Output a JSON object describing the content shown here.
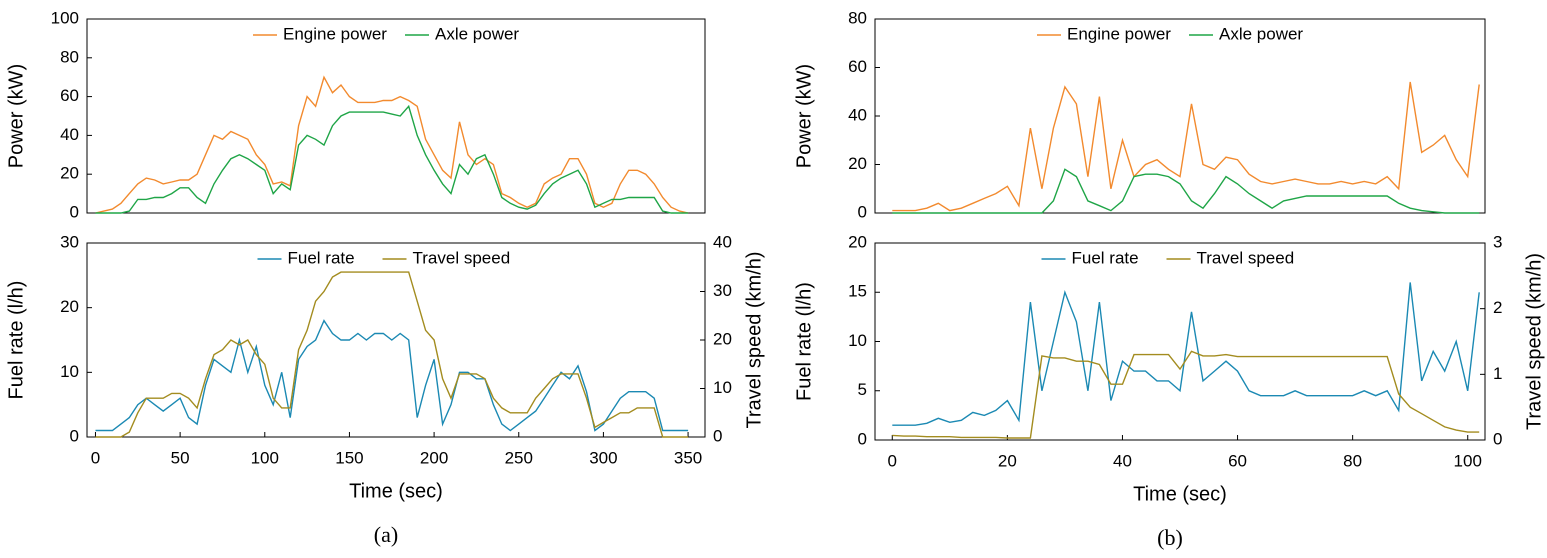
{
  "chart_data": [
    {
      "type": "line",
      "ylabel": "Power (kW)",
      "legend": "top-center",
      "x": [
        0,
        5,
        10,
        15,
        20,
        25,
        30,
        35,
        40,
        45,
        50,
        55,
        60,
        65,
        70,
        75,
        80,
        85,
        90,
        95,
        100,
        105,
        110,
        115,
        120,
        125,
        130,
        135,
        140,
        145,
        150,
        155,
        160,
        165,
        170,
        175,
        180,
        185,
        190,
        195,
        200,
        205,
        210,
        215,
        220,
        225,
        230,
        235,
        240,
        245,
        250,
        255,
        260,
        265,
        270,
        275,
        280,
        285,
        290,
        295,
        300,
        305,
        310,
        315,
        320,
        325,
        330,
        335,
        340,
        345,
        350
      ],
      "series": [
        {
          "name": "Engine power",
          "color": "#f28a2e",
          "values": [
            0,
            1,
            2,
            5,
            10,
            15,
            18,
            17,
            15,
            16,
            17,
            17,
            20,
            30,
            40,
            38,
            42,
            40,
            38,
            30,
            25,
            15,
            16,
            14,
            45,
            60,
            55,
            70,
            62,
            66,
            60,
            57,
            57,
            57,
            58,
            58,
            60,
            58,
            55,
            38,
            30,
            22,
            18,
            47,
            30,
            25,
            28,
            25,
            10,
            8,
            5,
            3,
            5,
            15,
            18,
            20,
            28,
            28,
            20,
            5,
            3,
            5,
            15,
            22,
            22,
            20,
            15,
            8,
            3,
            1,
            0
          ]
        },
        {
          "name": "Axle power",
          "color": "#1fa547",
          "values": [
            0,
            0,
            0,
            0,
            1,
            7,
            7,
            8,
            8,
            10,
            13,
            13,
            8,
            5,
            15,
            22,
            28,
            30,
            28,
            25,
            22,
            10,
            15,
            12,
            35,
            40,
            38,
            35,
            45,
            50,
            52,
            52,
            52,
            52,
            52,
            51,
            50,
            55,
            40,
            30,
            22,
            15,
            10,
            25,
            20,
            28,
            30,
            20,
            8,
            5,
            3,
            2,
            4,
            10,
            15,
            18,
            20,
            22,
            15,
            3,
            5,
            7,
            7,
            8,
            8,
            8,
            8,
            1,
            0,
            0,
            0
          ]
        }
      ],
      "xlim": [
        -5,
        360
      ],
      "ylim": [
        0,
        100
      ],
      "yticks": [
        0,
        20,
        40,
        60,
        80,
        100
      ]
    },
    {
      "type": "line",
      "ylabel": "Fuel rate (l/h)",
      "y2label": "Travel speed (km/h)",
      "xlabel": "Time (sec)",
      "caption": "(a)",
      "legend": "top-center",
      "x": [
        0,
        5,
        10,
        15,
        20,
        25,
        30,
        35,
        40,
        45,
        50,
        55,
        60,
        65,
        70,
        75,
        80,
        85,
        90,
        95,
        100,
        105,
        110,
        115,
        120,
        125,
        130,
        135,
        140,
        145,
        150,
        155,
        160,
        165,
        170,
        175,
        180,
        185,
        190,
        195,
        200,
        205,
        210,
        215,
        220,
        225,
        230,
        235,
        240,
        245,
        250,
        255,
        260,
        265,
        270,
        275,
        280,
        285,
        290,
        295,
        300,
        305,
        310,
        315,
        320,
        325,
        330,
        335,
        340,
        345,
        350
      ],
      "series": [
        {
          "name": "Fuel rate",
          "color": "#1b89b3",
          "values": [
            1,
            1,
            1,
            2,
            3,
            5,
            6,
            5,
            4,
            5,
            6,
            3,
            2,
            8,
            12,
            11,
            10,
            15,
            10,
            14,
            8,
            5,
            10,
            3,
            12,
            14,
            15,
            18,
            16,
            15,
            15,
            16,
            15,
            16,
            16,
            15,
            16,
            15,
            3,
            8,
            12,
            2,
            5,
            10,
            10,
            9,
            9,
            5,
            2,
            1,
            2,
            3,
            4,
            6,
            8,
            10,
            9,
            11,
            7,
            1,
            2,
            4,
            6,
            7,
            7,
            7,
            6,
            1,
            1,
            1,
            1
          ]
        },
        {
          "name": "Travel speed",
          "color": "#a38c1f",
          "axis": "y2",
          "values": [
            0,
            0,
            0,
            0,
            1,
            5,
            8,
            8,
            8,
            9,
            9,
            8,
            6,
            12,
            17,
            18,
            20,
            19,
            20,
            17,
            15,
            8,
            6,
            6,
            18,
            22,
            28,
            30,
            33,
            34,
            34,
            34,
            34,
            34,
            34,
            34,
            34,
            34,
            28,
            22,
            20,
            12,
            8,
            13,
            13,
            13,
            12,
            8,
            6,
            5,
            5,
            5,
            8,
            10,
            12,
            13,
            13,
            13,
            8,
            2,
            3,
            4,
            5,
            5,
            6,
            6,
            6,
            0,
            0,
            0,
            0
          ]
        }
      ],
      "xlim": [
        -5,
        360
      ],
      "xticks": [
        0,
        50,
        100,
        150,
        200,
        250,
        300,
        350
      ],
      "ylim": [
        0,
        30
      ],
      "yticks": [
        0,
        10,
        20,
        30
      ],
      "y2lim": [
        0,
        40
      ],
      "y2ticks": [
        0,
        10,
        20,
        30,
        40
      ]
    },
    {
      "type": "line",
      "ylabel": "Power (kW)",
      "legend": "top-center",
      "x": [
        0,
        2,
        4,
        6,
        8,
        10,
        12,
        14,
        16,
        18,
        20,
        22,
        24,
        26,
        28,
        30,
        32,
        34,
        36,
        38,
        40,
        42,
        44,
        46,
        48,
        50,
        52,
        54,
        56,
        58,
        60,
        62,
        64,
        66,
        68,
        70,
        72,
        74,
        76,
        78,
        80,
        82,
        84,
        86,
        88,
        90,
        92,
        94,
        96,
        98,
        100,
        102
      ],
      "series": [
        {
          "name": "Engine power",
          "color": "#f28a2e",
          "values": [
            1,
            1,
            1,
            2,
            4,
            1,
            2,
            4,
            6,
            8,
            11,
            3,
            35,
            10,
            35,
            52,
            45,
            15,
            48,
            10,
            30,
            15,
            20,
            22,
            18,
            15,
            45,
            20,
            18,
            23,
            22,
            16,
            13,
            12,
            13,
            14,
            13,
            12,
            12,
            13,
            12,
            13,
            12,
            15,
            10,
            54,
            25,
            28,
            32,
            22,
            15,
            53
          ]
        },
        {
          "name": "Axle power",
          "color": "#1fa547",
          "values": [
            0,
            0,
            0,
            0,
            0,
            0,
            0,
            0,
            0,
            0,
            0,
            0,
            0,
            0,
            5,
            18,
            15,
            5,
            3,
            1,
            5,
            15,
            16,
            16,
            15,
            12,
            5,
            2,
            8,
            15,
            12,
            8,
            5,
            2,
            5,
            6,
            7,
            7,
            7,
            7,
            7,
            7,
            7,
            7,
            4,
            2,
            1,
            0.5,
            0,
            0,
            0,
            0
          ]
        }
      ],
      "xlim": [
        -3,
        103
      ],
      "ylim": [
        0,
        80
      ],
      "yticks": [
        0,
        20,
        40,
        60,
        80
      ]
    },
    {
      "type": "line",
      "ylabel": "Fuel rate (l/h)",
      "y2label": "Travel speed (km/h)",
      "xlabel": "Time (sec)",
      "caption": "(b)",
      "legend": "top-center",
      "x": [
        0,
        2,
        4,
        6,
        8,
        10,
        12,
        14,
        16,
        18,
        20,
        22,
        24,
        26,
        28,
        30,
        32,
        34,
        36,
        38,
        40,
        42,
        44,
        46,
        48,
        50,
        52,
        54,
        56,
        58,
        60,
        62,
        64,
        66,
        68,
        70,
        72,
        74,
        76,
        78,
        80,
        82,
        84,
        86,
        88,
        90,
        92,
        94,
        96,
        98,
        100,
        102
      ],
      "series": [
        {
          "name": "Fuel rate",
          "color": "#1b89b3",
          "values": [
            1.5,
            1.5,
            1.5,
            1.7,
            2.2,
            1.8,
            2,
            2.8,
            2.5,
            3,
            4,
            2,
            14,
            5,
            10,
            15,
            12,
            5,
            14,
            4,
            8,
            7,
            7,
            6,
            6,
            5,
            13,
            6,
            7,
            8,
            7,
            5,
            4.5,
            4.5,
            4.5,
            5,
            4.5,
            4.5,
            4.5,
            4.5,
            4.5,
            5,
            4.5,
            5,
            3,
            16,
            6,
            9,
            7,
            10,
            5,
            15
          ]
        },
        {
          "name": "Travel speed",
          "color": "#a38c1f",
          "axis": "y2",
          "values": [
            0.07,
            0.06,
            0.06,
            0.05,
            0.05,
            0.05,
            0.04,
            0.04,
            0.04,
            0.04,
            0.03,
            0.03,
            0.03,
            1.28,
            1.25,
            1.25,
            1.2,
            1.2,
            1.15,
            0.85,
            0.85,
            1.3,
            1.3,
            1.3,
            1.3,
            1.08,
            1.35,
            1.28,
            1.28,
            1.3,
            1.27,
            1.27,
            1.27,
            1.27,
            1.27,
            1.27,
            1.27,
            1.27,
            1.27,
            1.27,
            1.27,
            1.27,
            1.27,
            1.27,
            0.7,
            0.5,
            0.4,
            0.3,
            0.2,
            0.15,
            0.12,
            0.12
          ]
        }
      ],
      "xlim": [
        -3,
        103
      ],
      "xticks": [
        0,
        20,
        40,
        60,
        80,
        100
      ],
      "ylim": [
        0,
        20
      ],
      "yticks": [
        0,
        5,
        10,
        15,
        20
      ],
      "y2lim": [
        0,
        3
      ],
      "y2ticks": [
        0,
        1,
        2,
        3
      ]
    }
  ]
}
